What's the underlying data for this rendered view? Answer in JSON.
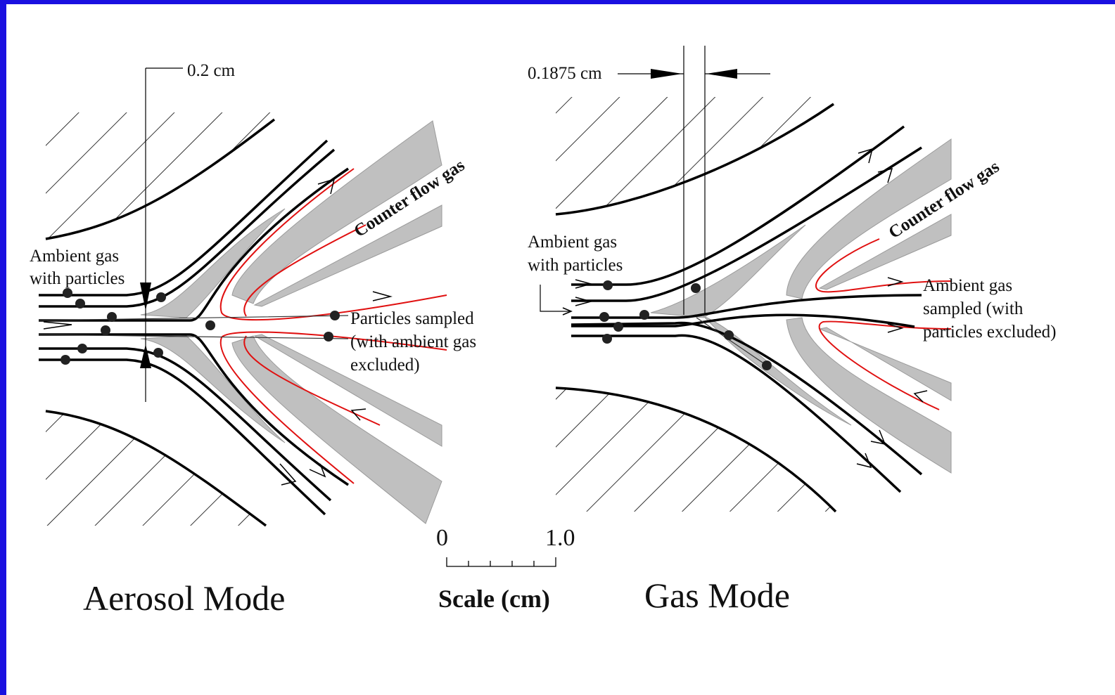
{
  "left_panel": {
    "dimension_label": "0.2 cm",
    "inlet_label": [
      "Ambient gas",
      "with particles"
    ],
    "counter_flow_label": "Counter flow gas",
    "outlet_label": [
      "Particles sampled",
      "(with ambient gas",
      "excluded)"
    ],
    "title": "Aerosol Mode"
  },
  "scale": {
    "min_label": "0",
    "max_label": "1.0",
    "label": "Scale (cm)"
  },
  "right_panel": {
    "dimension_label": "0.1875 cm",
    "inlet_label": [
      "Ambient gas",
      "with particles"
    ],
    "counter_flow_label": "Counter flow gas",
    "outlet_label": [
      "Ambient gas",
      "sampled (with",
      "particles excluded)"
    ],
    "title": "Gas Mode"
  }
}
